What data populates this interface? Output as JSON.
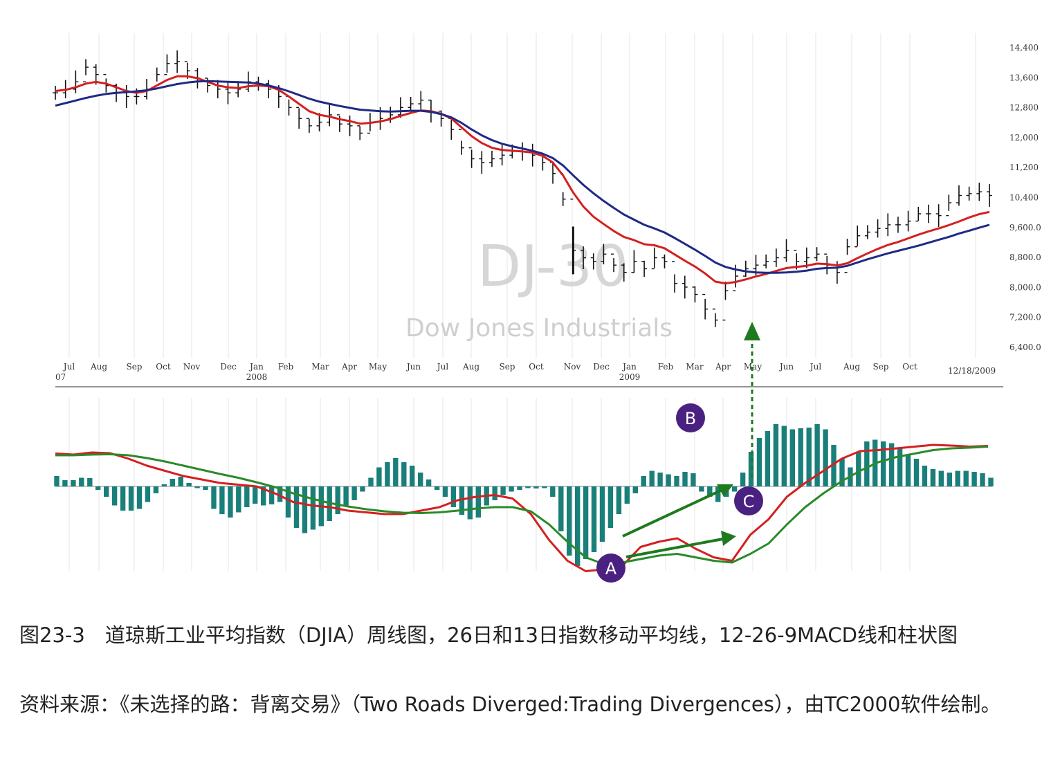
{
  "chart_data": [
    {
      "type": "bar",
      "subtype": "ohlc-weekly",
      "watermark_symbol": "DJ-30",
      "watermark_name": "Dow Jones Industrials",
      "date_label": "12/18/2009",
      "x_tick_labels": [
        "Jul",
        "Aug",
        "Sep",
        "Oct",
        "Nov",
        "Dec",
        "Jan",
        "Feb",
        "Mar",
        "Apr",
        "May",
        "Jun",
        "Jul",
        "Aug",
        "Sep",
        "Oct",
        "Nov",
        "Dec",
        "Jan",
        "Feb",
        "Mar",
        "Apr",
        "May",
        "Jun",
        "Jul",
        "Aug",
        "Sep",
        "Oct"
      ],
      "year_labels": [
        {
          "text": "07",
          "month_index": 0
        },
        {
          "text": "2008",
          "month_index": 6
        },
        {
          "text": "2009",
          "month_index": 18
        }
      ],
      "y_tick_labels": [
        "14,400",
        "13,600",
        "12,800",
        "12,000",
        "11,200",
        "10,400",
        "9,600.0",
        "8,800.0",
        "8,000.0",
        "7,200.0",
        "6,400.0"
      ],
      "ylim": [
        6200,
        14600
      ],
      "series": [
        {
          "name": "price",
          "style": "ohlc",
          "values": [
            13200,
            13300,
            13500,
            13900,
            13700,
            13400,
            13200,
            13100,
            13100,
            13300,
            13700,
            14000,
            14050,
            13800,
            13600,
            13400,
            13300,
            13200,
            13300,
            13500,
            13450,
            13300,
            13100,
            12800,
            12500,
            12300,
            12400,
            12600,
            12350,
            12300,
            12100,
            12400,
            12500,
            12600,
            12800,
            12900,
            13000,
            12700,
            12500,
            12200,
            11700,
            11400,
            11300,
            11400,
            11500,
            11600,
            11600,
            11500,
            11300,
            11000,
            10300,
            8900,
            8700,
            8600,
            8800,
            8500,
            8300,
            8600,
            8400,
            8700,
            8600,
            8000,
            7900,
            7700,
            7300,
            7000,
            7800,
            8200,
            8400,
            8500,
            8600,
            8700,
            8900,
            8600,
            8700,
            8800,
            8500,
            8300,
            9000,
            9300,
            9400,
            9500,
            9600,
            9600,
            9700,
            9900,
            9900,
            9850,
            10200,
            10400,
            10450,
            10500,
            10400
          ]
        },
        {
          "name": "EMA 13",
          "style": "line",
          "color": "#d42020",
          "values": [
            13250,
            13280,
            13350,
            13450,
            13500,
            13450,
            13350,
            13250,
            13200,
            13250,
            13400,
            13550,
            13650,
            13650,
            13600,
            13500,
            13400,
            13350,
            13330,
            13380,
            13400,
            13380,
            13280,
            13100,
            12900,
            12700,
            12600,
            12550,
            12480,
            12430,
            12360,
            12380,
            12420,
            12480,
            12570,
            12650,
            12720,
            12700,
            12630,
            12500,
            12260,
            12020,
            11830,
            11700,
            11640,
            11620,
            11600,
            11570,
            11480,
            11300,
            10950,
            10480,
            10100,
            9820,
            9620,
            9430,
            9270,
            9180,
            9070,
            9040,
            8960,
            8790,
            8620,
            8460,
            8270,
            8050,
            8000,
            8040,
            8110,
            8190,
            8260,
            8340,
            8420,
            8450,
            8480,
            8540,
            8530,
            8490,
            8550,
            8690,
            8820,
            8940,
            9050,
            9130,
            9230,
            9330,
            9420,
            9500,
            9590,
            9690,
            9800,
            9890,
            9950
          ]
        },
        {
          "name": "EMA 26",
          "style": "line",
          "color": "#1f2a85",
          "values": [
            12850,
            12920,
            12990,
            13060,
            13120,
            13170,
            13200,
            13220,
            13240,
            13270,
            13320,
            13380,
            13440,
            13480,
            13510,
            13520,
            13510,
            13500,
            13490,
            13480,
            13450,
            13400,
            13330,
            13240,
            13140,
            13040,
            12960,
            12900,
            12840,
            12790,
            12740,
            12720,
            12700,
            12690,
            12700,
            12710,
            12710,
            12680,
            12620,
            12530,
            12380,
            12200,
            12040,
            11910,
            11810,
            11740,
            11680,
            11620,
            11540,
            11420,
            11220,
            10950,
            10690,
            10460,
            10250,
            10060,
            9880,
            9740,
            9600,
            9500,
            9390,
            9240,
            9080,
            8920,
            8750,
            8570,
            8450,
            8380,
            8330,
            8300,
            8290,
            8290,
            8300,
            8320,
            8350,
            8400,
            8420,
            8430,
            8480,
            8570,
            8660,
            8740,
            8820,
            8890,
            8960,
            9030,
            9110,
            9190,
            9270,
            9360,
            9440,
            9520,
            9600
          ]
        }
      ]
    },
    {
      "type": "bar",
      "subtype": "macd-histogram",
      "indicator": "12-26-9 MACD",
      "ylim": [
        -260,
        200
      ],
      "series": [
        {
          "name": "histogram",
          "style": "bar",
          "color": "#1a7f7a",
          "values": [
            30,
            18,
            18,
            25,
            24,
            -10,
            -30,
            -55,
            -70,
            -70,
            -65,
            -45,
            -20,
            6,
            22,
            28,
            10,
            -5,
            -10,
            -65,
            -80,
            -90,
            -75,
            -60,
            -50,
            -55,
            -52,
            -45,
            -90,
            -120,
            -135,
            -125,
            -115,
            -100,
            -80,
            -55,
            -40,
            -15,
            25,
            55,
            70,
            82,
            70,
            60,
            40,
            20,
            -10,
            -30,
            -60,
            -82,
            -95,
            -90,
            -55,
            -40,
            -25,
            -15,
            -10,
            -5,
            -6,
            -5,
            -30,
            -130,
            -200,
            -230,
            -210,
            -190,
            -160,
            -120,
            -80,
            -50,
            -20,
            30,
            45,
            40,
            35,
            30,
            42,
            38,
            -15,
            -30,
            -45,
            -30,
            -15,
            40,
            100,
            140,
            160,
            180,
            175,
            165,
            168,
            170,
            180,
            165,
            120,
            80,
            55,
            100,
            130,
            135,
            130,
            125,
            110,
            90,
            80,
            60,
            50,
            45,
            40,
            45,
            45,
            42,
            38,
            25
          ]
        },
        {
          "name": "MACD",
          "style": "line",
          "color": "#d42020",
          "values": [
            95,
            92,
            98,
            96,
            80,
            60,
            45,
            30,
            20,
            10,
            5,
            0,
            -20,
            -45,
            -55,
            -60,
            -70,
            -75,
            -80,
            -80,
            -70,
            -60,
            -40,
            -30,
            -25,
            -35,
            -80,
            -155,
            -215,
            -245,
            -240,
            -230,
            -175,
            -160,
            -150,
            -180,
            -205,
            -215,
            -140,
            -95,
            -30,
            10,
            45,
            80,
            102,
            105,
            110,
            115,
            120,
            118,
            115,
            117
          ]
        },
        {
          "name": "Signal",
          "style": "line",
          "color": "#2a8a2a",
          "values": [
            90,
            90,
            92,
            93,
            90,
            82,
            72,
            60,
            48,
            36,
            25,
            12,
            -2,
            -20,
            -35,
            -48,
            -58,
            -66,
            -72,
            -76,
            -77,
            -75,
            -70,
            -64,
            -60,
            -60,
            -72,
            -110,
            -160,
            -205,
            -225,
            -220,
            -210,
            -200,
            -195,
            -205,
            -215,
            -220,
            -195,
            -165,
            -110,
            -60,
            -20,
            15,
            45,
            70,
            85,
            95,
            105,
            110,
            112,
            115
          ]
        }
      ]
    }
  ],
  "annotations": {
    "A": "A",
    "B": "B",
    "C": "C"
  },
  "caption": {
    "line1": "图23-3　道琼斯工业平均指数（DJIA）周线图，26日和13日指数移动平均线，12-26-9MACD线和柱状图",
    "line2": "资料来源：《未选择的路：背离交易》（Two Roads Diverged:Trading Divergences），由TC2000软件绘制。"
  }
}
